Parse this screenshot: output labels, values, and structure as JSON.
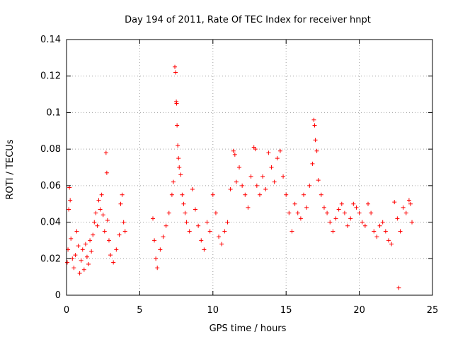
{
  "chart_data": {
    "type": "scatter",
    "title": "Day 194 of 2011, Rate Of TEC Index for receiver hnpt",
    "xlabel": "GPS time / hours",
    "ylabel": "ROTI / TECUs",
    "xlim": [
      0,
      25
    ],
    "ylim": [
      0,
      0.14
    ],
    "xticks": [
      "0",
      "5",
      "10",
      "15",
      "20",
      "25"
    ],
    "yticks": [
      "0",
      "0.02",
      "0.04",
      "0.06",
      "0.08",
      "0.1",
      "0.12",
      "0.14"
    ],
    "grid": true,
    "marker": "+",
    "color": "#ff0000",
    "series": [
      {
        "points": [
          [
            0.05,
            0.018
          ],
          [
            0.1,
            0.025
          ],
          [
            0.15,
            0.047
          ],
          [
            0.2,
            0.059
          ],
          [
            0.25,
            0.052
          ],
          [
            0.3,
            0.031
          ],
          [
            0.4,
            0.02
          ],
          [
            0.5,
            0.015
          ],
          [
            0.6,
            0.022
          ],
          [
            0.7,
            0.035
          ],
          [
            0.8,
            0.027
          ],
          [
            0.9,
            0.012
          ],
          [
            1.0,
            0.019
          ],
          [
            1.1,
            0.025
          ],
          [
            1.2,
            0.014
          ],
          [
            1.3,
            0.028
          ],
          [
            1.4,
            0.021
          ],
          [
            1.5,
            0.017
          ],
          [
            1.6,
            0.03
          ],
          [
            1.7,
            0.024
          ],
          [
            1.8,
            0.033
          ],
          [
            1.9,
            0.04
          ],
          [
            2.0,
            0.045
          ],
          [
            2.1,
            0.038
          ],
          [
            2.2,
            0.052
          ],
          [
            2.3,
            0.047
          ],
          [
            2.4,
            0.055
          ],
          [
            2.5,
            0.044
          ],
          [
            2.6,
            0.035
          ],
          [
            2.7,
            0.078
          ],
          [
            2.75,
            0.067
          ],
          [
            2.8,
            0.041
          ],
          [
            2.9,
            0.03
          ],
          [
            3.0,
            0.022
          ],
          [
            3.2,
            0.018
          ],
          [
            3.4,
            0.025
          ],
          [
            3.6,
            0.033
          ],
          [
            3.7,
            0.05
          ],
          [
            3.8,
            0.055
          ],
          [
            3.9,
            0.04
          ],
          [
            4.0,
            0.035
          ],
          [
            5.9,
            0.042
          ],
          [
            6.0,
            0.03
          ],
          [
            6.1,
            0.02
          ],
          [
            6.2,
            0.015
          ],
          [
            6.4,
            0.025
          ],
          [
            6.6,
            0.032
          ],
          [
            6.8,
            0.038
          ],
          [
            7.0,
            0.045
          ],
          [
            7.2,
            0.055
          ],
          [
            7.3,
            0.062
          ],
          [
            7.4,
            0.125
          ],
          [
            7.45,
            0.122
          ],
          [
            7.5,
            0.106
          ],
          [
            7.52,
            0.105
          ],
          [
            7.55,
            0.093
          ],
          [
            7.6,
            0.082
          ],
          [
            7.65,
            0.075
          ],
          [
            7.7,
            0.07
          ],
          [
            7.8,
            0.066
          ],
          [
            7.9,
            0.055
          ],
          [
            8.0,
            0.05
          ],
          [
            8.1,
            0.045
          ],
          [
            8.2,
            0.04
          ],
          [
            8.4,
            0.035
          ],
          [
            8.6,
            0.058
          ],
          [
            8.8,
            0.047
          ],
          [
            9.0,
            0.038
          ],
          [
            9.2,
            0.03
          ],
          [
            9.4,
            0.025
          ],
          [
            9.6,
            0.04
          ],
          [
            9.8,
            0.035
          ],
          [
            10.0,
            0.055
          ],
          [
            10.2,
            0.045
          ],
          [
            10.4,
            0.032
          ],
          [
            10.6,
            0.028
          ],
          [
            10.8,
            0.035
          ],
          [
            11.0,
            0.04
          ],
          [
            11.2,
            0.058
          ],
          [
            11.4,
            0.079
          ],
          [
            11.5,
            0.077
          ],
          [
            11.6,
            0.062
          ],
          [
            11.8,
            0.07
          ],
          [
            12.0,
            0.06
          ],
          [
            12.2,
            0.055
          ],
          [
            12.4,
            0.048
          ],
          [
            12.6,
            0.065
          ],
          [
            12.8,
            0.081
          ],
          [
            12.9,
            0.08
          ],
          [
            13.0,
            0.06
          ],
          [
            13.2,
            0.055
          ],
          [
            13.4,
            0.065
          ],
          [
            13.6,
            0.058
          ],
          [
            13.8,
            0.078
          ],
          [
            14.0,
            0.07
          ],
          [
            14.2,
            0.062
          ],
          [
            14.4,
            0.075
          ],
          [
            14.6,
            0.079
          ],
          [
            14.8,
            0.065
          ],
          [
            15.0,
            0.055
          ],
          [
            15.2,
            0.045
          ],
          [
            15.4,
            0.035
          ],
          [
            15.6,
            0.05
          ],
          [
            15.8,
            0.045
          ],
          [
            16.0,
            0.042
          ],
          [
            16.2,
            0.055
          ],
          [
            16.4,
            0.048
          ],
          [
            16.6,
            0.06
          ],
          [
            16.8,
            0.072
          ],
          [
            16.9,
            0.096
          ],
          [
            16.95,
            0.093
          ],
          [
            17.0,
            0.085
          ],
          [
            17.1,
            0.079
          ],
          [
            17.2,
            0.063
          ],
          [
            17.4,
            0.055
          ],
          [
            17.6,
            0.048
          ],
          [
            17.8,
            0.045
          ],
          [
            18.0,
            0.04
          ],
          [
            18.2,
            0.035
          ],
          [
            18.4,
            0.042
          ],
          [
            18.6,
            0.047
          ],
          [
            18.8,
            0.05
          ],
          [
            19.0,
            0.045
          ],
          [
            19.2,
            0.038
          ],
          [
            19.4,
            0.042
          ],
          [
            19.6,
            0.05
          ],
          [
            19.8,
            0.048
          ],
          [
            20.0,
            0.045
          ],
          [
            20.2,
            0.04
          ],
          [
            20.4,
            0.038
          ],
          [
            20.6,
            0.05
          ],
          [
            20.8,
            0.045
          ],
          [
            21.0,
            0.035
          ],
          [
            21.2,
            0.032
          ],
          [
            21.4,
            0.038
          ],
          [
            21.6,
            0.04
          ],
          [
            21.8,
            0.035
          ],
          [
            22.0,
            0.03
          ],
          [
            22.2,
            0.028
          ],
          [
            22.4,
            0.051
          ],
          [
            22.6,
            0.042
          ],
          [
            22.8,
            0.035
          ],
          [
            23.0,
            0.048
          ],
          [
            23.2,
            0.045
          ],
          [
            23.4,
            0.052
          ],
          [
            23.5,
            0.05
          ],
          [
            23.6,
            0.04
          ],
          [
            22.7,
            0.004
          ]
        ]
      }
    ]
  }
}
